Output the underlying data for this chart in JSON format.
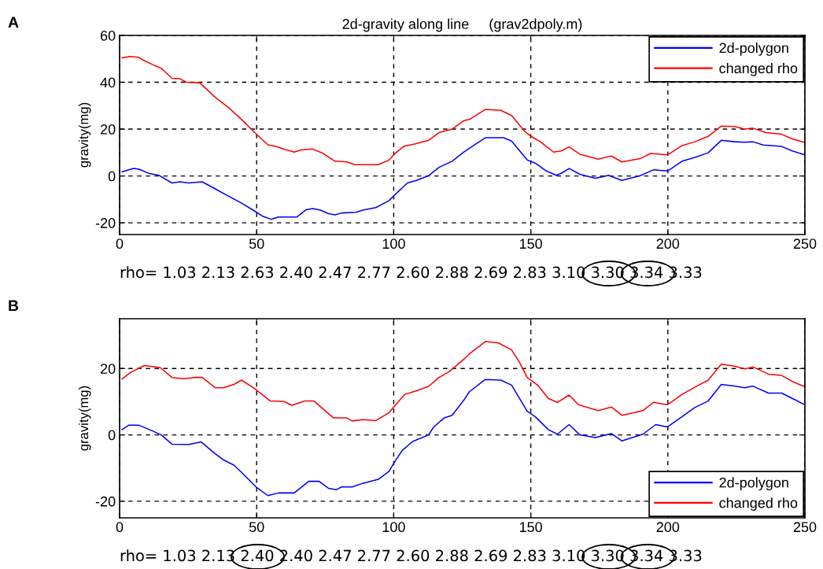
{
  "chart_data": [
    {
      "type": "line",
      "title": "2d-gravity along line     (grav2dpoly.m)",
      "ylabel": "gravity(mg)",
      "xlim": [
        0,
        250
      ],
      "xticks": [
        0,
        50,
        100,
        150,
        200,
        250
      ],
      "ylim": [
        -25,
        60
      ],
      "yticks": [
        -20,
        0,
        20,
        40,
        60
      ],
      "grid": true,
      "legend": "top right",
      "line_style": "solid",
      "annotations": [
        "A",
        "rho= 1.03 2.13 2.63 2.40 2.47 2.77 2.60 2.88 2.69 2.83 3.10 3.30 3.34 3.33"
      ],
      "series": [
        {
          "name": "2d-polygon",
          "color": "#0000ff",
          "x": [
            0.9,
            5.2,
            7.1,
            10.9,
            14.3,
            19.1,
            22,
            25.3,
            30.1,
            34.9,
            39.7,
            44.5,
            49.3,
            52.2,
            55.3,
            57.9,
            64.7,
            68.1,
            70.4,
            73.3,
            76.2,
            78.6,
            81,
            86.3,
            88.7,
            93.5,
            98.3,
            100.2,
            105,
            108.3,
            112.7,
            116.5,
            121.3,
            125.6,
            127.6,
            133.4,
            140.1,
            143,
            148.7,
            151.6,
            155.4,
            159.3,
            161.2,
            164,
            167.9,
            173.6,
            178.4,
            183.2,
            189.9,
            194.7,
            199.9,
            205.2,
            209.9,
            214.7,
            219.5,
            224.3,
            228.1,
            231,
            234.8,
            241.5,
            245.4,
            249.7
          ],
          "values": [
            1.8,
            3.2,
            2.9,
            1,
            0.3,
            -3,
            -2.5,
            -3,
            -2.5,
            -5.5,
            -8.6,
            -11.6,
            -15,
            -17.2,
            -18.5,
            -17.5,
            -17.5,
            -14.4,
            -13.9,
            -14.6,
            -16.1,
            -16.6,
            -15.8,
            -15.5,
            -14.6,
            -13.5,
            -10.5,
            -8.3,
            -3,
            -1.9,
            0.1,
            3.7,
            6.3,
            10.2,
            11.8,
            16.3,
            16.3,
            14.9,
            6.8,
            5.5,
            2.3,
            0.3,
            1.2,
            3.2,
            0.7,
            -1,
            0.3,
            -1.9,
            0.1,
            2.6,
            2.1,
            6.3,
            7.9,
            9.9,
            15.2,
            14.6,
            14.4,
            14.6,
            13.2,
            12.6,
            10.7,
            9.1
          ]
        },
        {
          "name": "changed rho",
          "color": "#ff0000",
          "x": [
            0.9,
            3.7,
            6.9,
            8.5,
            11.9,
            15.3,
            19.1,
            22,
            24.4,
            29.2,
            34.9,
            39.7,
            44.5,
            49.3,
            54.1,
            57,
            60.4,
            63.7,
            66.1,
            70.4,
            74.3,
            78.6,
            82.9,
            85.8,
            89.6,
            94.4,
            98.3,
            100.2,
            103.6,
            107.9,
            112.7,
            116.5,
            121.3,
            125.6,
            127.6,
            133.4,
            139.1,
            143,
            147.7,
            150.1,
            153.5,
            158.3,
            161.2,
            164,
            167.9,
            174.6,
            179.4,
            183.2,
            189.9,
            193.7,
            199.9,
            205.2,
            209.9,
            214.7,
            219.5,
            224.3,
            228.1,
            231,
            235.8,
            241.5,
            245.4,
            249.7
          ],
          "values": [
            50.4,
            51,
            50.7,
            49.5,
            47.6,
            45.9,
            41.7,
            41.5,
            40,
            39.8,
            33.6,
            29.2,
            24.1,
            18.5,
            13.3,
            12.6,
            11.3,
            10.2,
            11.1,
            11.5,
            9.6,
            6.3,
            6,
            4.8,
            4.8,
            4.8,
            6.8,
            9.3,
            12.6,
            13.7,
            15.2,
            18.5,
            20,
            23.6,
            24.1,
            28.4,
            28,
            25.8,
            19.1,
            16.9,
            14.6,
            10.2,
            10.7,
            12.4,
            9.3,
            7.2,
            8.5,
            6,
            7.4,
            9.6,
            9,
            13,
            14.6,
            16.9,
            21.3,
            21.1,
            20,
            20.4,
            18.5,
            17.8,
            15.8,
            14.4
          ]
        }
      ]
    },
    {
      "type": "line",
      "ylabel": "gravity(mg)",
      "xlim": [
        0,
        250
      ],
      "xticks": [
        0,
        50,
        100,
        150,
        200,
        250
      ],
      "ylim": [
        -25,
        35
      ],
      "yticks": [
        -20,
        0,
        20
      ],
      "grid": true,
      "legend": "bottom right",
      "line_style": "solid",
      "annotations": [
        "B",
        "rho= 1.03 2.13 2.40 2.40 2.47 2.77 2.60 2.88 2.69 2.83 3.10 3.30 3.34 3.33"
      ],
      "series": [
        {
          "name": "2d-polygon",
          "color": "#0000ff",
          "x": [
            0.9,
            3.3,
            7.1,
            10.9,
            15.2,
            19.1,
            25.3,
            29.7,
            34.9,
            37.8,
            41.7,
            44.5,
            49.8,
            54.1,
            57.9,
            63.7,
            69,
            72.8,
            76.2,
            79.1,
            81,
            84.8,
            88.7,
            94.4,
            98.3,
            100.2,
            103.1,
            106.9,
            112.7,
            114.6,
            118.4,
            121.3,
            125.6,
            127.6,
            133.4,
            139.1,
            143,
            148.7,
            151.6,
            156.4,
            159.7,
            164,
            167.9,
            173.6,
            179.4,
            183.2,
            190.9,
            195.6,
            199.9,
            205.2,
            209.9,
            214.7,
            219.5,
            224.3,
            228.1,
            231,
            236.7,
            241.5,
            245.4,
            249.7
          ],
          "values": [
            1.6,
            2.9,
            2.9,
            1.6,
            0,
            -2.8,
            -2.9,
            -2.1,
            -5.7,
            -7.5,
            -9.1,
            -11.3,
            -15.7,
            -18.3,
            -17.5,
            -17.5,
            -14,
            -14,
            -16.1,
            -16.5,
            -15.7,
            -15.7,
            -14.6,
            -13.4,
            -11,
            -8.3,
            -4.7,
            -2,
            0,
            2.4,
            5.1,
            5.9,
            10.5,
            13,
            16.7,
            16.5,
            15,
            7.1,
            5.5,
            1.6,
            0.2,
            3.1,
            0,
            -0.8,
            0.4,
            -1.8,
            0.2,
            3.1,
            2.4,
            5.5,
            8.3,
            10.2,
            15.2,
            14.7,
            14.2,
            14.7,
            12.6,
            12.6,
            11,
            9.2
          ]
        },
        {
          "name": "changed rho",
          "color": "#ff0000",
          "x": [
            0.9,
            4.2,
            9,
            14.8,
            19.1,
            23.4,
            27.2,
            30.1,
            34.9,
            37.8,
            41.7,
            44.5,
            49.3,
            55,
            59.9,
            62.8,
            67.6,
            70.9,
            78.1,
            82.9,
            84.8,
            88.7,
            93.5,
            98.3,
            100.7,
            104,
            107.9,
            112.7,
            116.5,
            120.3,
            125.6,
            127.6,
            133.4,
            138.2,
            143,
            145.8,
            148.7,
            152.5,
            156.4,
            159.7,
            164,
            167.4,
            174.6,
            179.4,
            183.2,
            190.9,
            194.7,
            199.9,
            205.2,
            209.9,
            214.7,
            219.5,
            224.3,
            228.1,
            231,
            236.7,
            241.5,
            245.4,
            249.7
          ],
          "values": [
            16.9,
            18.9,
            20.9,
            20.3,
            17.3,
            16.9,
            17.3,
            17.3,
            14.2,
            14.2,
            15.2,
            16.5,
            13.9,
            10.2,
            10.1,
            8.9,
            10.2,
            10.2,
            5.1,
            5.1,
            4.2,
            4.6,
            4.3,
            6.7,
            9.1,
            12.2,
            13.2,
            14.6,
            17.3,
            19.1,
            22.8,
            24.4,
            28.1,
            27.7,
            25.6,
            22,
            17.3,
            15,
            11,
            9.8,
            12,
            9.1,
            7.3,
            8.4,
            5.9,
            7.3,
            9.8,
            9.1,
            12.2,
            14.4,
            16.5,
            21.3,
            20.7,
            19.9,
            20.5,
            18.3,
            17.9,
            16.1,
            14.6
          ]
        }
      ]
    }
  ]
}
